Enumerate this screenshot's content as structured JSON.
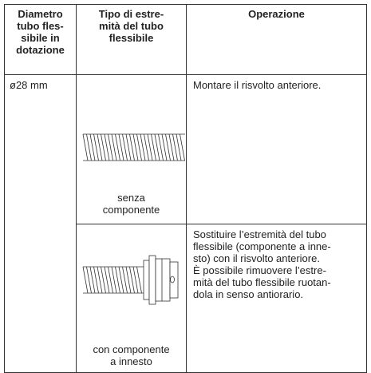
{
  "table": {
    "header": [
      [
        "Diametro",
        "tubo fles-",
        "sibile in",
        "dotazione"
      ],
      [
        "Tipo di estre-",
        "mità del tubo",
        "flessibile"
      ],
      [
        "Operazione"
      ]
    ],
    "diameter": "ø28 mm",
    "rows": [
      {
        "end_type": [
          "senza",
          "componente"
        ],
        "operation": [
          "Montare il risvolto anteriore."
        ]
      },
      {
        "end_type": [
          "con componente",
          "a innesto"
        ],
        "operation": [
          "Sostituire l’estremità del tubo",
          "flessibile (componente a inne-",
          "sto) con il risvolto anteriore.",
          "È possibile rimuovere l’estre-",
          "mità del tubo flessibile ruotan-",
          "dola in senso antiorario."
        ]
      }
    ]
  }
}
